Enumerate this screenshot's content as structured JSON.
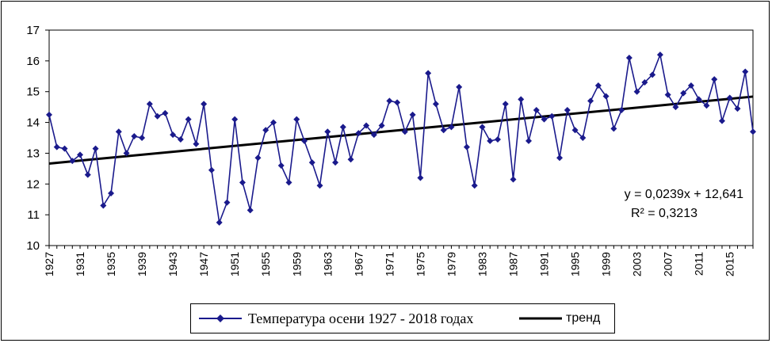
{
  "chart_data": {
    "type": "line",
    "title": "",
    "xlabel": "",
    "ylabel": "",
    "ylim": [
      10,
      17
    ],
    "y_ticks": [
      "10",
      "11",
      "12",
      "13",
      "14",
      "15",
      "16",
      "17"
    ],
    "x_tick_labels": [
      "1927",
      "1931",
      "1935",
      "1939",
      "1943",
      "1947",
      "1951",
      "1955",
      "1959",
      "1963",
      "1967",
      "1971",
      "1975",
      "1979",
      "1983",
      "1987",
      "1991",
      "1995",
      "1999",
      "2003",
      "2007",
      "2011",
      "2015"
    ],
    "x_start": 1927,
    "x_end": 2018,
    "grid": false,
    "legend_position": "bottom",
    "series": [
      {
        "name": "Температура осени 1927 - 2018 годах",
        "color": "#1a1a8c",
        "marker": "diamond",
        "values": [
          14.25,
          13.2,
          13.15,
          12.75,
          12.95,
          12.3,
          13.15,
          11.3,
          11.7,
          13.7,
          13.0,
          13.55,
          13.5,
          14.6,
          14.2,
          14.3,
          13.6,
          13.45,
          14.1,
          13.3,
          14.6,
          12.45,
          10.75,
          11.4,
          14.1,
          12.05,
          11.15,
          12.85,
          13.75,
          14.0,
          12.6,
          12.05,
          14.1,
          13.4,
          12.7,
          11.95,
          13.7,
          12.7,
          13.85,
          12.8,
          13.65,
          13.9,
          13.6,
          13.9,
          14.7,
          14.65,
          13.7,
          14.25,
          12.2,
          15.6,
          14.6,
          13.75,
          13.85,
          15.15,
          13.2,
          11.95,
          13.85,
          13.4,
          13.45,
          14.6,
          12.15,
          14.75,
          13.4,
          14.4,
          14.1,
          14.2,
          12.85,
          14.4,
          13.75,
          13.5,
          14.7,
          15.2,
          14.85,
          13.8,
          14.4,
          16.1,
          15.0,
          15.3,
          15.55,
          16.2,
          14.9,
          14.5,
          14.95,
          15.2,
          14.75,
          14.55,
          15.4,
          14.05,
          14.8,
          14.45,
          15.65,
          13.7
        ]
      },
      {
        "name": "тренд",
        "color": "#000000",
        "type": "trendline",
        "slope": 0.0239,
        "intercept": 12.641
      }
    ],
    "annotations": [
      "y = 0,0239x + 12,641",
      "R² = 0,3213"
    ]
  }
}
